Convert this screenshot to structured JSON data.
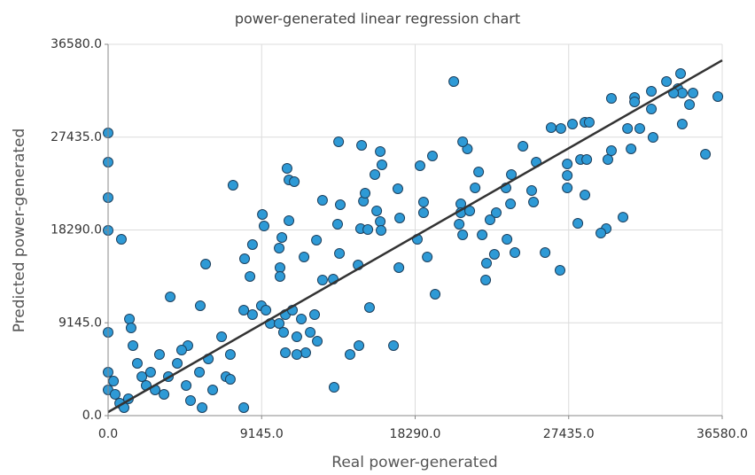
{
  "chart_data": {
    "type": "scatter",
    "title": "power-generated linear regression chart",
    "x_label": "Real power-generated",
    "y_label": "Predicted power-generated",
    "xlim": [
      0,
      36580
    ],
    "ylim": [
      0,
      36580
    ],
    "xticks": [
      {
        "value": 0,
        "label": "0.0"
      },
      {
        "value": 9145,
        "label": "9145.0"
      },
      {
        "value": 18290,
        "label": "18290.0"
      },
      {
        "value": 27435,
        "label": "27435.0"
      },
      {
        "value": 36580,
        "label": "36580.0"
      }
    ],
    "yticks": [
      {
        "value": 0,
        "label": "0.0"
      },
      {
        "value": 9145,
        "label": "9145.0"
      },
      {
        "value": 18290,
        "label": "18290.0"
      },
      {
        "value": 27435,
        "label": "27435.0"
      },
      {
        "value": 36580,
        "label": "36580.0"
      }
    ],
    "grid": true,
    "series": [
      {
        "color": "#2e9ad6",
        "x": [
          20590,
          0,
          0,
          0,
          0,
          790,
          7440,
          5810,
          9190,
          8600,
          9290,
          10660,
          10770,
          11090,
          10770,
          10190,
          10350,
          10240,
          10240,
          8450,
          8130,
          11670,
          12410,
          12770,
          13730,
          13830,
          13780,
          12770,
          13410,
          13670,
          14890,
          15100,
          15210,
          15040,
          16210,
          15310,
          15890,
          16310,
          16000,
          16210,
          17260,
          17370,
          17320,
          15470,
          16260,
          17000,
          15570,
          18580,
          18790,
          18790,
          18420,
          19010,
          19480,
          19320,
          21400,
          21120,
          21010,
          21010,
          20910,
          21120,
          21540,
          21860,
          22070,
          22280,
          22540,
          22490,
          23010,
          22750,
          23120,
          23700,
          24020,
          23970,
          23760,
          24230,
          24710,
          25500,
          25230,
          25340,
          26390,
          26970,
          27350,
          27350,
          27350,
          26030,
          26920,
          27660,
          28400,
          28660,
          28140,
          27980,
          28510,
          28400,
          29980,
          29770,
          29980,
          29670,
          29350,
          30670,
          31360,
          31360,
          31150,
          30940,
          31670,
          32360,
          32460,
          32360,
          33260,
          34100,
          33940,
          34200,
          34840,
          34630,
          34200,
          35580,
          36320,
          33680,
          0,
          0,
          0,
          320,
          420,
          690,
          950,
          1210,
          1270,
          1370,
          1480,
          1740,
          2010,
          2270,
          2530,
          2800,
          3060,
          3330,
          3590,
          4120,
          4650,
          4910,
          5440,
          5600,
          5970,
          6230,
          6760,
          7020,
          7280,
          3700,
          5490,
          4750,
          4380,
          7280,
          8080,
          8080,
          8600,
          9130,
          9400,
          9660,
          10190,
          10450,
          10560,
          10980,
          11240,
          11510,
          11770,
          12040,
          10560,
          11240,
          12460,
          13460,
          14410,
          14940,
          12300
        ],
        "values": [
          32910,
          27850,
          24970,
          21480,
          18250,
          17370,
          22700,
          14930,
          19820,
          16850,
          18680,
          24360,
          23220,
          23050,
          19210,
          16500,
          17550,
          14580,
          13710,
          13710,
          15450,
          15630,
          17290,
          21210,
          26980,
          20780,
          15980,
          13360,
          13440,
          18860,
          14840,
          26630,
          21130,
          18420,
          26020,
          21910,
          23750,
          24710,
          20170,
          19120,
          22350,
          19470,
          14580,
          18330,
          18250,
          6900,
          10650,
          24620,
          21040,
          19990,
          17370,
          15630,
          11960,
          25580,
          26280,
          26980,
          20860,
          19990,
          18860,
          17810,
          20170,
          22440,
          24010,
          17810,
          15020,
          13360,
          15890,
          19290,
          19990,
          22440,
          23750,
          20860,
          17370,
          16060,
          26540,
          24970,
          22170,
          21040,
          28370,
          28290,
          24790,
          23660,
          22440,
          16060,
          14320,
          28720,
          28900,
          28900,
          25230,
          18940,
          25230,
          21740,
          31250,
          25230,
          26100,
          18420,
          17980,
          19550,
          31340,
          30910,
          26280,
          28290,
          28290,
          31950,
          27410,
          30210,
          32910,
          33700,
          32210,
          31780,
          31780,
          30640,
          28720,
          25750,
          31430,
          31780,
          8210,
          4280,
          2530,
          3400,
          2100,
          1220,
          790,
          1660,
          9520,
          8640,
          6900,
          5150,
          3840,
          2970,
          4280,
          2530,
          6020,
          2100,
          3840,
          5150,
          2970,
          1480,
          4280,
          790,
          5590,
          2530,
          7770,
          3840,
          6020,
          11700,
          10830,
          6900,
          6460,
          3580,
          790,
          10390,
          9950,
          10830,
          10390,
          9080,
          9080,
          8210,
          9950,
          10390,
          7770,
          9520,
          6200,
          8210,
          6200,
          6020,
          7330,
          2790,
          6020,
          6900,
          9950
        ]
      },
      {
        "type": "line",
        "color": "#333333",
        "x": [
          0,
          36580
        ],
        "values": [
          350,
          35000
        ]
      }
    ]
  }
}
